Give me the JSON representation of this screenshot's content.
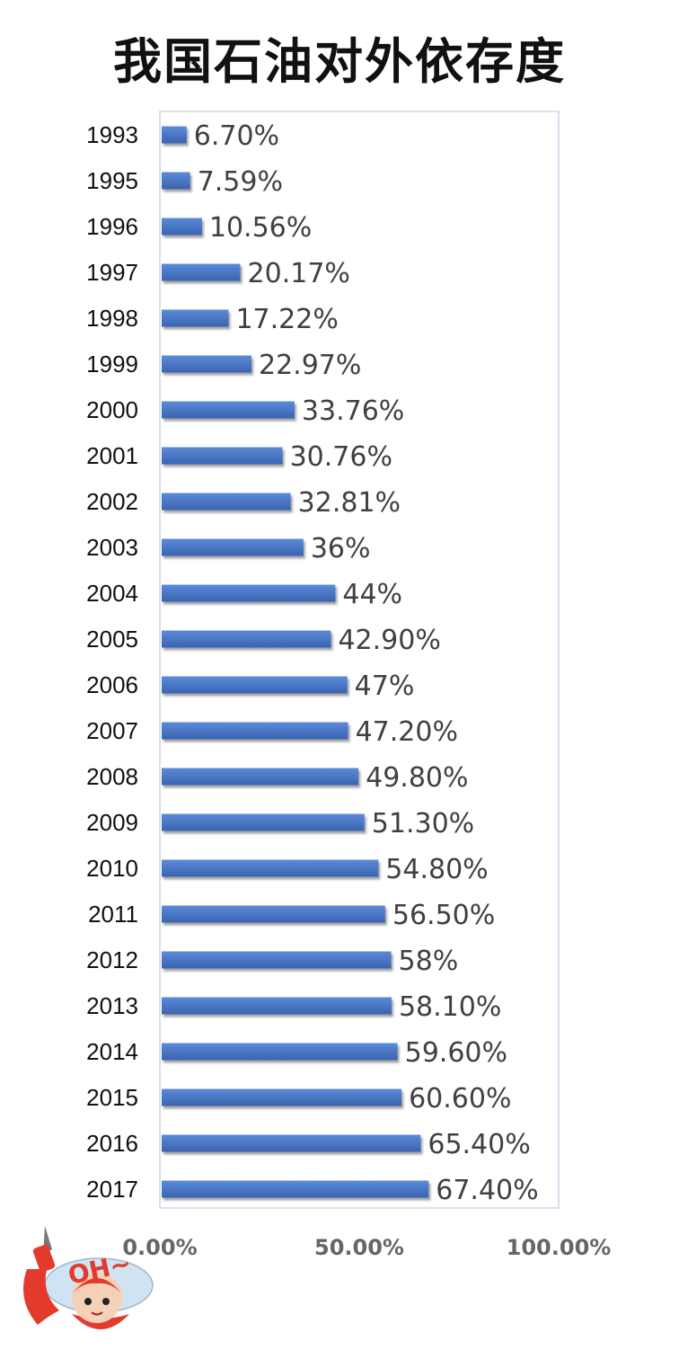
{
  "chart_data": {
    "type": "bar",
    "orientation": "horizontal",
    "title": "我国石油对外依存度",
    "categories": [
      "1993",
      "1995",
      "1996",
      "1997",
      "1998",
      "1999",
      "2000",
      "2001",
      "2002",
      "2003",
      "2004",
      "2005",
      "2006",
      "2007",
      "2008",
      "2009",
      "2010",
      "2011",
      "2012",
      "2013",
      "2014",
      "2015",
      "2016",
      "2017"
    ],
    "values": [
      6.7,
      7.59,
      10.56,
      20.17,
      17.22,
      22.97,
      33.76,
      30.76,
      32.81,
      36,
      44,
      42.9,
      47,
      47.2,
      49.8,
      51.3,
      54.8,
      56.5,
      58,
      58.1,
      59.6,
      60.6,
      65.4,
      67.4
    ],
    "value_labels": [
      "6.70%",
      "7.59%",
      "10.56%",
      "20.17%",
      "17.22%",
      "22.97%",
      "33.76%",
      "30.76%",
      "32.81%",
      "36%",
      "44%",
      "42.90%",
      "47%",
      "47.20%",
      "49.80%",
      "51.30%",
      "54.80%",
      "56.50%",
      "58%",
      "58.10%",
      "59.60%",
      "60.60%",
      "65.40%",
      "67.40%"
    ],
    "x_ticks": [
      "0.00%",
      "50.00%",
      "100.00%"
    ],
    "xlim": [
      0,
      100
    ],
    "grid": false,
    "bar_color": "#4472c4",
    "xlabel": "",
    "ylabel": ""
  },
  "logo": {
    "text": "OH~",
    "icon": "mascot-logo"
  }
}
